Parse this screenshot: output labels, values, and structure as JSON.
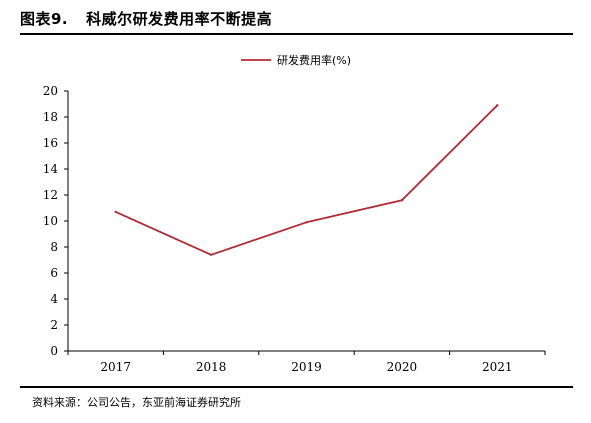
{
  "figure": {
    "number": "图表9.",
    "title": "科威尔研发费用率不断提高",
    "source": "资料来源：公司公告，东亚前海证券研究所"
  },
  "chart_data": {
    "type": "line",
    "title": "",
    "xlabel": "",
    "ylabel": "",
    "categories": [
      "2017",
      "2018",
      "2019",
      "2020",
      "2021"
    ],
    "series": [
      {
        "name": "研发费用率(%)",
        "values": [
          10.7,
          7.4,
          9.9,
          11.6,
          18.9
        ],
        "color": "#b22a34"
      }
    ],
    "ylim": [
      0,
      20
    ],
    "yticks": [
      "0",
      "2",
      "4",
      "6",
      "8",
      "10",
      "12",
      "14",
      "16",
      "18",
      "20"
    ],
    "grid": false,
    "legend_position": "top-center"
  }
}
